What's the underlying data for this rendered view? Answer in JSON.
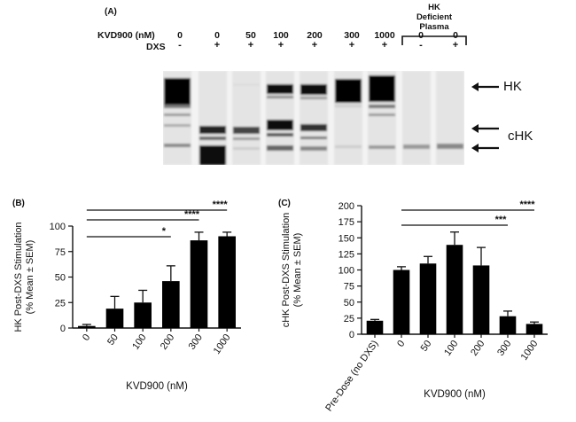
{
  "panel_a": {
    "label": "(A)",
    "kvd_label": "KVD900 (nM)",
    "dxs_label": "DXS",
    "deficient_label_lines": [
      "HK",
      "Deficient",
      "Plasma"
    ],
    "lanes": [
      {
        "kvd": "0",
        "dxs": "-"
      },
      {
        "kvd": "0",
        "dxs": "+"
      },
      {
        "kvd": "50",
        "dxs": "+"
      },
      {
        "kvd": "100",
        "dxs": "+"
      },
      {
        "kvd": "200",
        "dxs": "+"
      },
      {
        "kvd": "300",
        "dxs": "+"
      },
      {
        "kvd": "1000",
        "dxs": "+"
      },
      {
        "kvd": "0",
        "dxs": "-"
      },
      {
        "kvd": "0",
        "dxs": "+"
      }
    ],
    "band_labels": {
      "hk": "HK",
      "chk": "cHK"
    }
  },
  "chart_data": [
    {
      "type": "bar",
      "panel": "(B)",
      "categories": [
        "0",
        "50",
        "100",
        "200",
        "300",
        "1000"
      ],
      "values": [
        2,
        19,
        25,
        46,
        86,
        90
      ],
      "errors": [
        1.5,
        12,
        12,
        15,
        8,
        4
      ],
      "xlabel": "KVD900 (nM)",
      "ylabel": "HK Post-DXS Stimulation (% Mean ± SEM)",
      "ylim": [
        0,
        100
      ],
      "yticks": [
        "0",
        "25",
        "50",
        "75",
        "100"
      ],
      "significance": [
        {
          "from": "0",
          "to": "200",
          "label": "*"
        },
        {
          "from": "0",
          "to": "300",
          "label": "****"
        },
        {
          "from": "0",
          "to": "1000",
          "label": "****"
        }
      ]
    },
    {
      "type": "bar",
      "panel": "(C)",
      "categories": [
        "Pre-Dose (no DXS)",
        "0",
        "50",
        "100",
        "200",
        "300",
        "1000"
      ],
      "values": [
        21,
        100,
        110,
        139,
        107,
        28,
        16
      ],
      "errors": [
        2,
        5,
        11,
        20,
        28,
        8,
        3
      ],
      "xlabel": "KVD900 (nM)",
      "ylabel": "cHK Post-DXS Stimulation (% Mean ± SEM)",
      "ylim": [
        0,
        200
      ],
      "yticks": [
        "0",
        "25",
        "50",
        "75",
        "100",
        "125",
        "150",
        "175",
        "200"
      ],
      "significance": [
        {
          "from": "0",
          "to": "300",
          "label": "***"
        },
        {
          "from": "0",
          "to": "1000",
          "label": "****"
        }
      ]
    }
  ]
}
